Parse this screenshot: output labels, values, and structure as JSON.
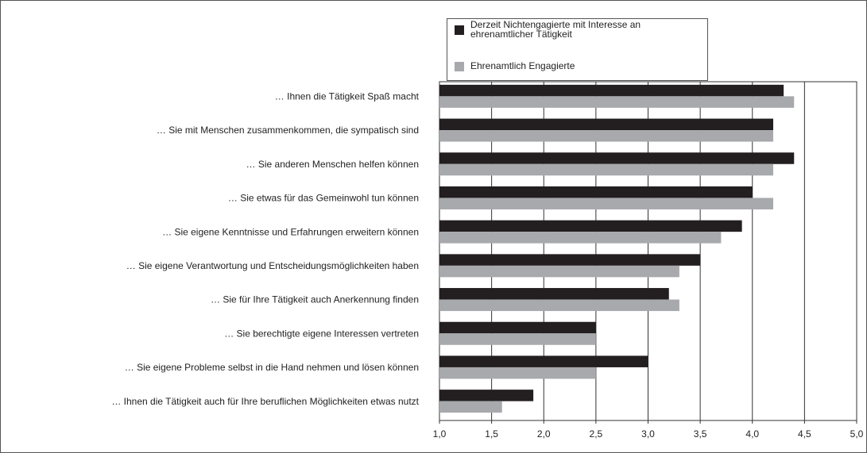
{
  "chart_data": {
    "type": "hbar",
    "categories": [
      "… Ihnen die Tätigkeit Spaß macht",
      "… Sie mit Menschen zusammenkommen, die sympatisch sind",
      "… Sie anderen Menschen helfen können",
      "… Sie etwas für das Gemeinwohl tun können",
      "… Sie eigene Kenntnisse und Erfahrungen erweitern können",
      "… Sie eigene Verantwortung und Entscheidungsmöglichkeiten haben",
      "… Sie für Ihre Tätigkeit auch Anerkennung finden",
      "… Sie berechtigte eigene Interessen vertreten",
      "… Sie eigene Probleme selbst in die Hand nehmen und lösen können",
      "… Ihnen die Tätigkeit auch für Ihre beruflichen Möglichkeiten etwas nutzt"
    ],
    "series": [
      {
        "name": "Derzeit Nichtengagierte mit Interesse an ehrenamtlicher Tätigkeit",
        "color": "#231f20",
        "values": [
          4.3,
          4.2,
          4.4,
          4.0,
          3.9,
          3.5,
          3.2,
          2.5,
          3.0,
          1.9
        ]
      },
      {
        "name": "Ehrenamtlich Engagierte",
        "color": "#a7a9ac",
        "values": [
          4.4,
          4.2,
          4.2,
          4.2,
          3.7,
          3.3,
          3.3,
          2.5,
          2.5,
          1.6
        ]
      }
    ],
    "xlim": [
      1.0,
      5.0
    ],
    "xticks": [
      {
        "value": 1.0,
        "label": "1,0"
      },
      {
        "value": 1.5,
        "label": "1,5"
      },
      {
        "value": 2.0,
        "label": "2,0"
      },
      {
        "value": 2.5,
        "label": "2,5"
      },
      {
        "value": 3.0,
        "label": "3,0"
      },
      {
        "value": 3.5,
        "label": "3,5"
      },
      {
        "value": 4.0,
        "label": "4,0"
      },
      {
        "value": 4.5,
        "label": "4,5"
      },
      {
        "value": 5.0,
        "label": "5,0"
      }
    ],
    "grid": true
  }
}
